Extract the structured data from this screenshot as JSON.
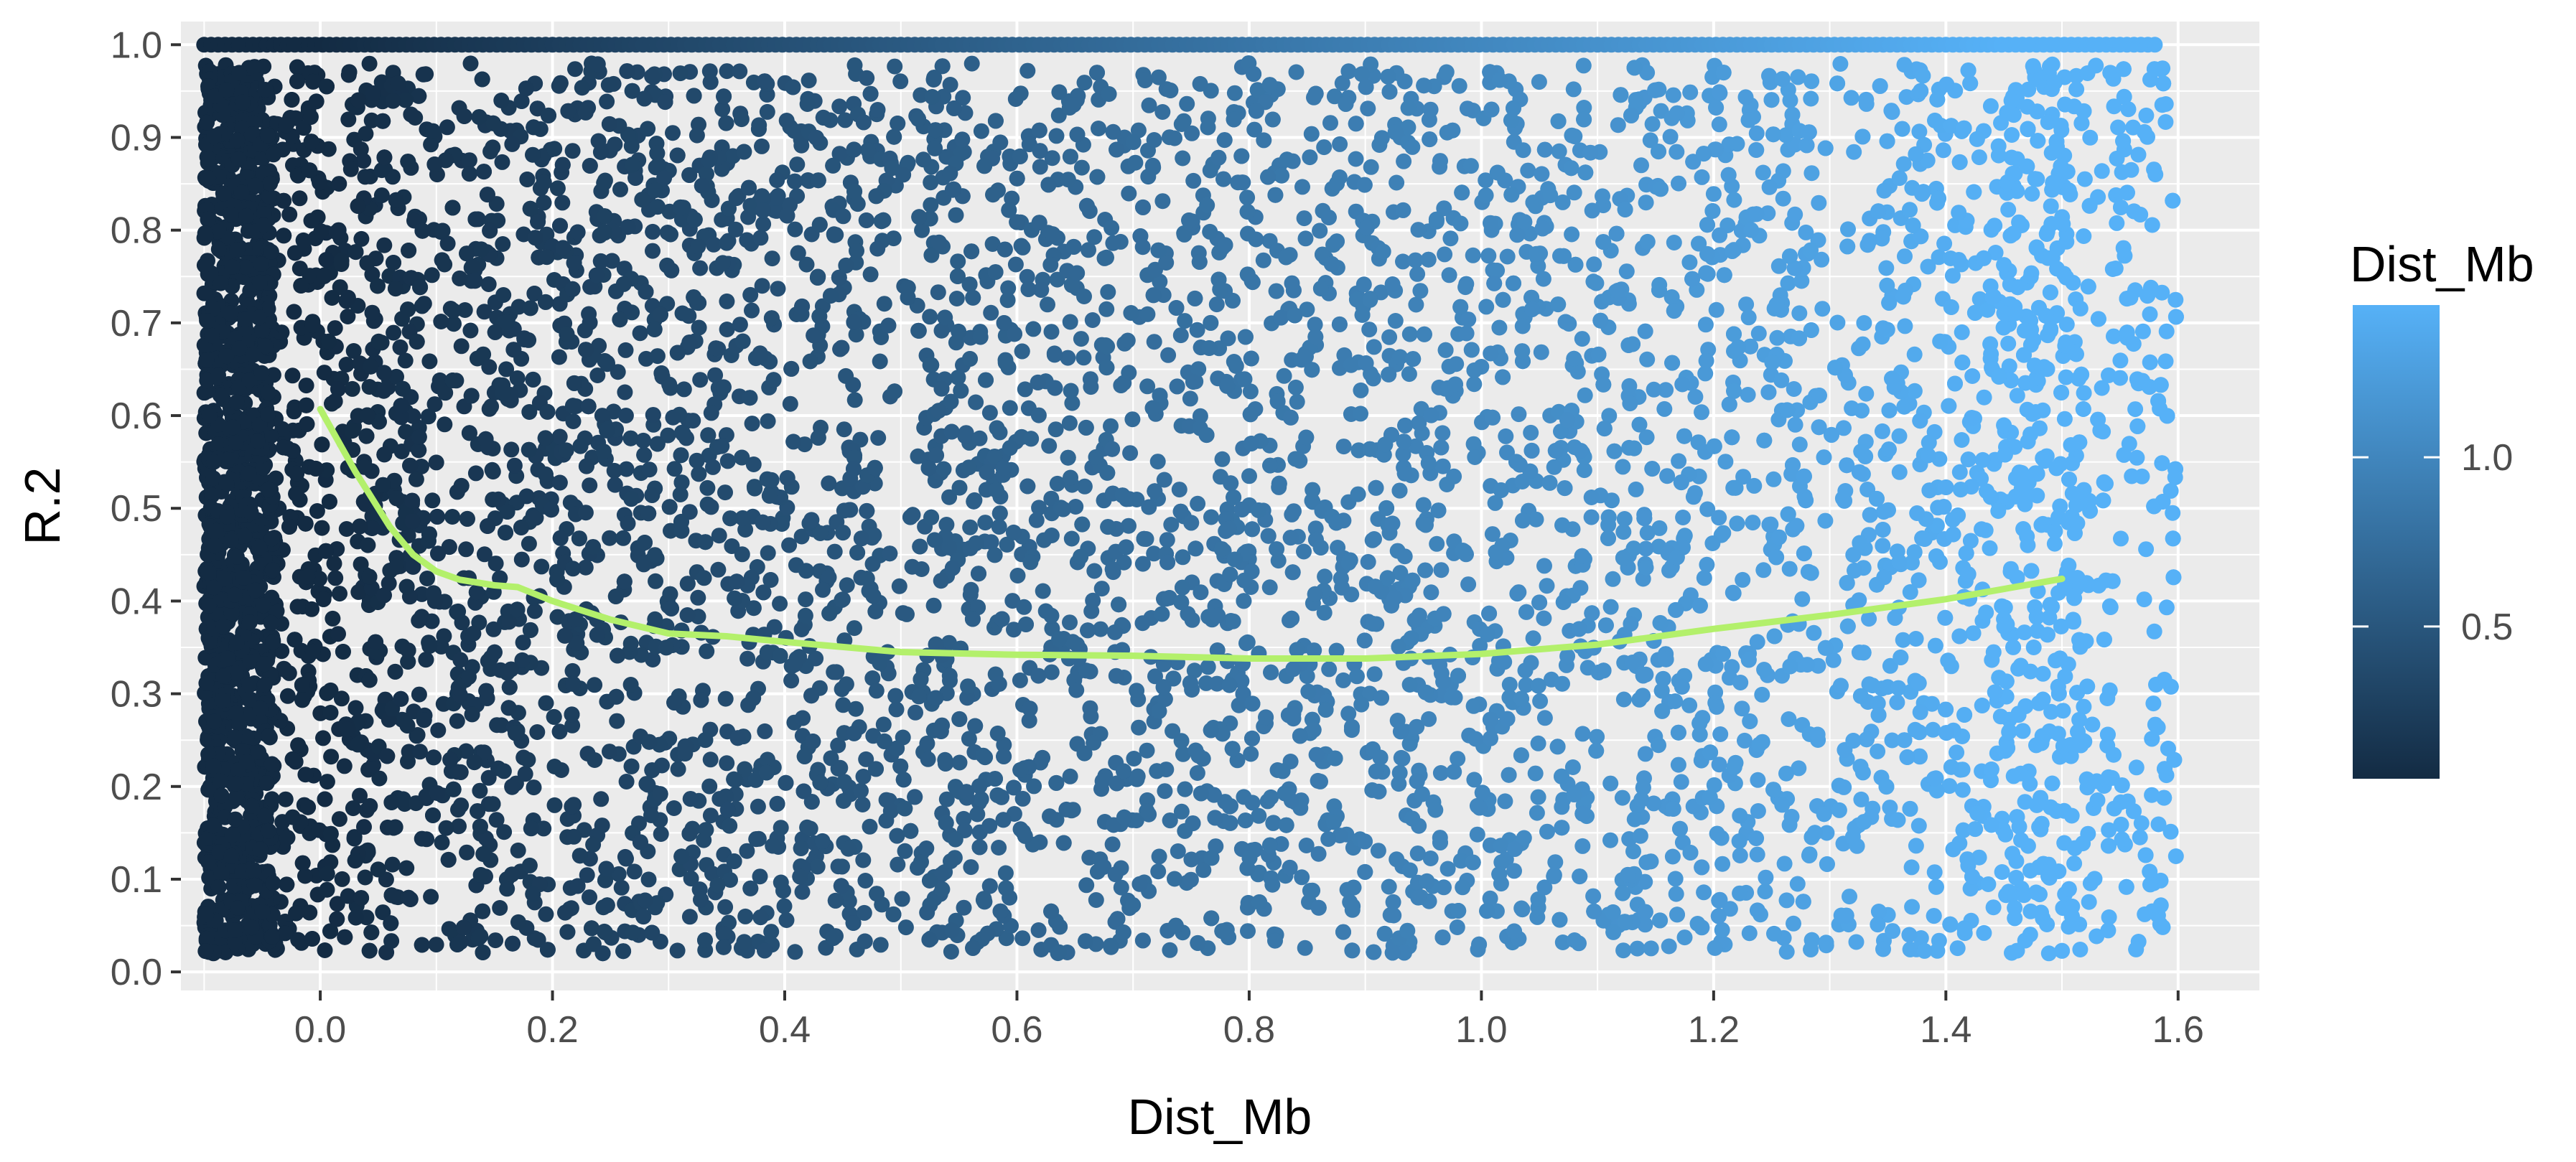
{
  "chart_data": {
    "type": "scatter",
    "xlabel": "Dist_Mb",
    "ylabel": "R.2",
    "xlim": [
      -0.12,
      1.67
    ],
    "ylim": [
      -0.02,
      1.025
    ],
    "x_ticks": [
      0.0,
      0.2,
      0.4,
      0.6,
      0.8,
      1.0,
      1.2,
      1.4,
      1.6
    ],
    "x_tick_labels": [
      "0.0",
      "0.2",
      "0.4",
      "0.6",
      "0.8",
      "1.0",
      "1.2",
      "1.4",
      "1.6"
    ],
    "y_ticks": [
      0.0,
      0.1,
      0.2,
      0.3,
      0.4,
      0.5,
      0.6,
      0.7,
      0.8,
      0.9,
      1.0
    ],
    "y_tick_labels": [
      "0.0",
      "0.1",
      "0.2",
      "0.3",
      "0.4",
      "0.5",
      "0.6",
      "0.7",
      "0.8",
      "0.9",
      "1.0"
    ],
    "grid": true,
    "background": "#ebebeb",
    "points": {
      "x_range": [
        -0.1,
        1.6
      ],
      "y_range": [
        0.02,
        0.98
      ],
      "y_ceiling_row": 1.0,
      "color_variable": "Dist_Mb"
    },
    "color_scale": {
      "title": "Dist_Mb",
      "low_color": "#132b43",
      "high_color": "#56b1f7",
      "domain": [
        0.0,
        1.45
      ],
      "ticks": [
        0.5,
        1.0
      ],
      "tick_labels": [
        "0.5",
        "1.0"
      ],
      "legend_range": [
        0.05,
        1.45
      ],
      "legend_position": "right"
    },
    "smooth_line": {
      "color": "#b3f06b",
      "x": [
        0.0,
        0.03,
        0.06,
        0.08,
        0.1,
        0.12,
        0.15,
        0.17,
        0.2,
        0.25,
        0.3,
        0.35,
        0.4,
        0.5,
        0.6,
        0.7,
        0.8,
        0.9,
        1.0,
        1.1,
        1.2,
        1.3,
        1.4,
        1.5
      ],
      "y": [
        0.607,
        0.54,
        0.48,
        0.45,
        0.432,
        0.423,
        0.417,
        0.415,
        0.4,
        0.38,
        0.365,
        0.362,
        0.356,
        0.345,
        0.342,
        0.341,
        0.338,
        0.338,
        0.343,
        0.353,
        0.37,
        0.385,
        0.402,
        0.424
      ]
    }
  }
}
